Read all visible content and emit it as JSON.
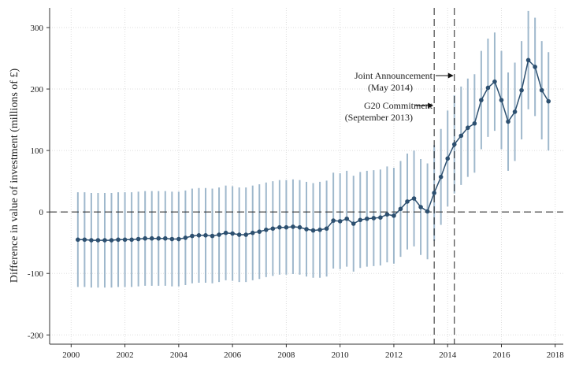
{
  "chart_data": {
    "type": "errorbar",
    "y_label": "Difference in value of investment (millions of £)",
    "x": [
      2000.25,
      2000.5,
      2000.75,
      2001,
      2001.25,
      2001.5,
      2001.75,
      2002,
      2002.25,
      2002.5,
      2002.75,
      2003,
      2003.25,
      2003.5,
      2003.75,
      2004,
      2004.25,
      2004.5,
      2004.75,
      2005,
      2005.25,
      2005.5,
      2005.75,
      2006,
      2006.25,
      2006.5,
      2006.75,
      2007,
      2007.25,
      2007.5,
      2007.75,
      2008,
      2008.25,
      2008.5,
      2008.75,
      2009,
      2009.25,
      2009.5,
      2009.75,
      2010,
      2010.25,
      2010.5,
      2010.75,
      2011,
      2011.25,
      2011.5,
      2011.75,
      2012,
      2012.25,
      2012.5,
      2012.75,
      2013,
      2013.25,
      2013.5,
      2013.75,
      2014,
      2014.25,
      2014.5,
      2014.75,
      2015,
      2015.25,
      2015.5,
      2015.75,
      2016,
      2016.25,
      2016.5,
      2016.75,
      2017,
      2017.25,
      2017.5,
      2017.75
    ],
    "values": [
      -45,
      -45,
      -46,
      -46,
      -46,
      -46,
      -45,
      -45,
      -45,
      -44,
      -43,
      -43,
      -43,
      -43,
      -44,
      -44,
      -42,
      -39,
      -38,
      -38,
      -39,
      -37,
      -34,
      -35,
      -37,
      -37,
      -34,
      -32,
      -29,
      -27,
      -25,
      -25,
      -24,
      -25,
      -28,
      -30,
      -29,
      -27,
      -14,
      -15,
      -11,
      -19,
      -13,
      -11,
      -10,
      -9,
      -4,
      -6,
      5,
      17,
      22,
      8,
      1,
      31,
      57,
      87,
      110,
      124,
      137,
      144,
      182,
      202,
      212,
      182,
      147,
      163,
      198,
      247,
      236,
      198,
      180
    ],
    "errors": [
      77,
      77,
      77,
      77,
      77,
      77,
      77,
      77,
      77,
      77,
      77,
      77,
      77,
      77,
      77,
      77,
      77,
      77,
      77,
      77,
      77,
      77,
      77,
      77,
      77,
      77,
      77,
      77,
      77,
      77,
      77,
      77,
      77,
      77,
      77,
      77,
      78,
      78,
      78,
      78,
      78,
      78,
      78,
      78,
      78,
      78,
      78,
      78,
      78,
      78,
      78,
      78,
      78,
      78,
      78,
      78,
      80,
      80,
      80,
      80,
      80,
      80,
      80,
      80,
      80,
      80,
      80,
      80,
      80,
      80,
      80
    ],
    "point_color": "#2d5070",
    "bar_color": "#9fb8cc",
    "xlim": [
      1999.2,
      2018.3
    ],
    "ylim": [
      -215,
      332
    ],
    "xticks": [
      2000,
      2002,
      2004,
      2006,
      2008,
      2010,
      2012,
      2014,
      2016,
      2018
    ],
    "yticks": [
      -200,
      -100,
      0,
      100,
      200,
      300
    ],
    "grid": true,
    "hline": 0,
    "vlines": [
      2014.25,
      2013.5
    ],
    "annotations": [
      {
        "text": "Joint Announcement",
        "subtext": "(May 2014)"
      },
      {
        "text": "G20 Commitment",
        "subtext": "(September 2013)"
      }
    ]
  }
}
